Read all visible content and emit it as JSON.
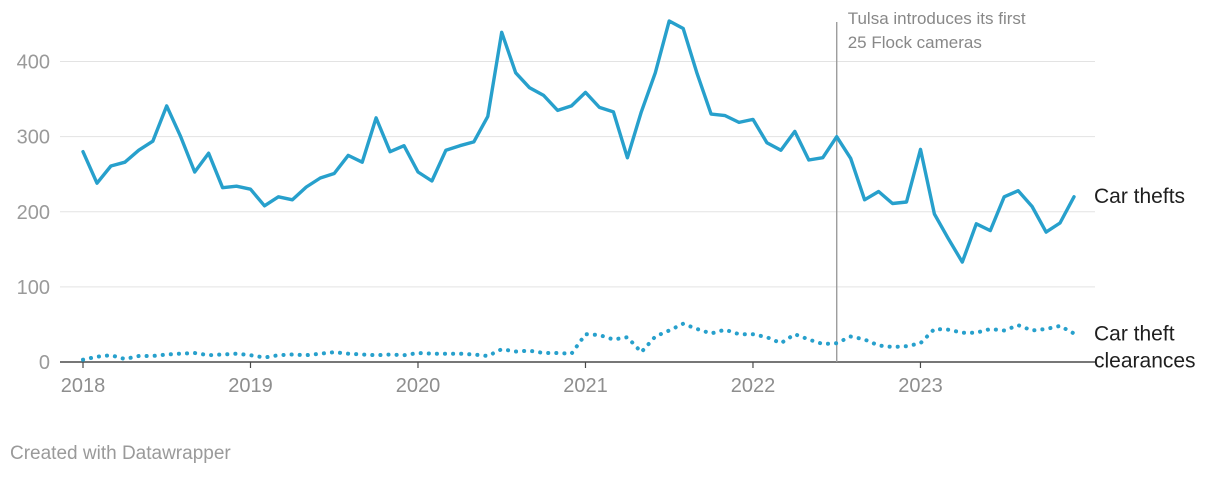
{
  "chart_data": {
    "type": "line",
    "x_ticks": [
      "2018",
      "2019",
      "2020",
      "2021",
      "2022",
      "2023"
    ],
    "y_ticks": [
      0,
      100,
      200,
      300,
      400
    ],
    "ylim": [
      0,
      450
    ],
    "x_range": [
      "2018-01",
      "2023-12"
    ],
    "grid": true,
    "series": [
      {
        "name": "Car thefts",
        "label_lines": [
          "Car thefts"
        ],
        "color": "#27a0cc",
        "style": "solid",
        "values": [
          280,
          238,
          261,
          266,
          282,
          294,
          341,
          300,
          253,
          278,
          232,
          234,
          230,
          208,
          220,
          216,
          233,
          245,
          251,
          275,
          266,
          325,
          280,
          288,
          253,
          241,
          282,
          288,
          293,
          327,
          439,
          385,
          365,
          355,
          335,
          341,
          359,
          339,
          333,
          272,
          333,
          385,
          454,
          444,
          384,
          330,
          328,
          319,
          323,
          292,
          282,
          307,
          269,
          272,
          300,
          271,
          216,
          227,
          211,
          213,
          283,
          197,
          164,
          133,
          184,
          175,
          220,
          228,
          207,
          173,
          185,
          220
        ]
      },
      {
        "name": "Car theft clearances",
        "label_lines": [
          "Car theft",
          "clearances"
        ],
        "color": "#27a0cc",
        "style": "dotted",
        "values": [
          3,
          7,
          9,
          4,
          8,
          8,
          10,
          11,
          12,
          9,
          10,
          11,
          9,
          6,
          9,
          10,
          9,
          11,
          13,
          11,
          10,
          9,
          10,
          9,
          12,
          11,
          11,
          11,
          10,
          8,
          17,
          14,
          15,
          12,
          12,
          11,
          37,
          36,
          30,
          33,
          13,
          34,
          42,
          51,
          44,
          38,
          43,
          37,
          37,
          33,
          25,
          37,
          30,
          24,
          25,
          34,
          30,
          22,
          20,
          21,
          25,
          44,
          43,
          39,
          39,
          44,
          42,
          49,
          42,
          44,
          48,
          38
        ]
      }
    ],
    "annotation": {
      "lines": [
        "Tulsa introduces its first",
        "25 Flock cameras"
      ],
      "x": "2022-07"
    }
  },
  "footer": {
    "credit": "Created with Datawrapper"
  }
}
